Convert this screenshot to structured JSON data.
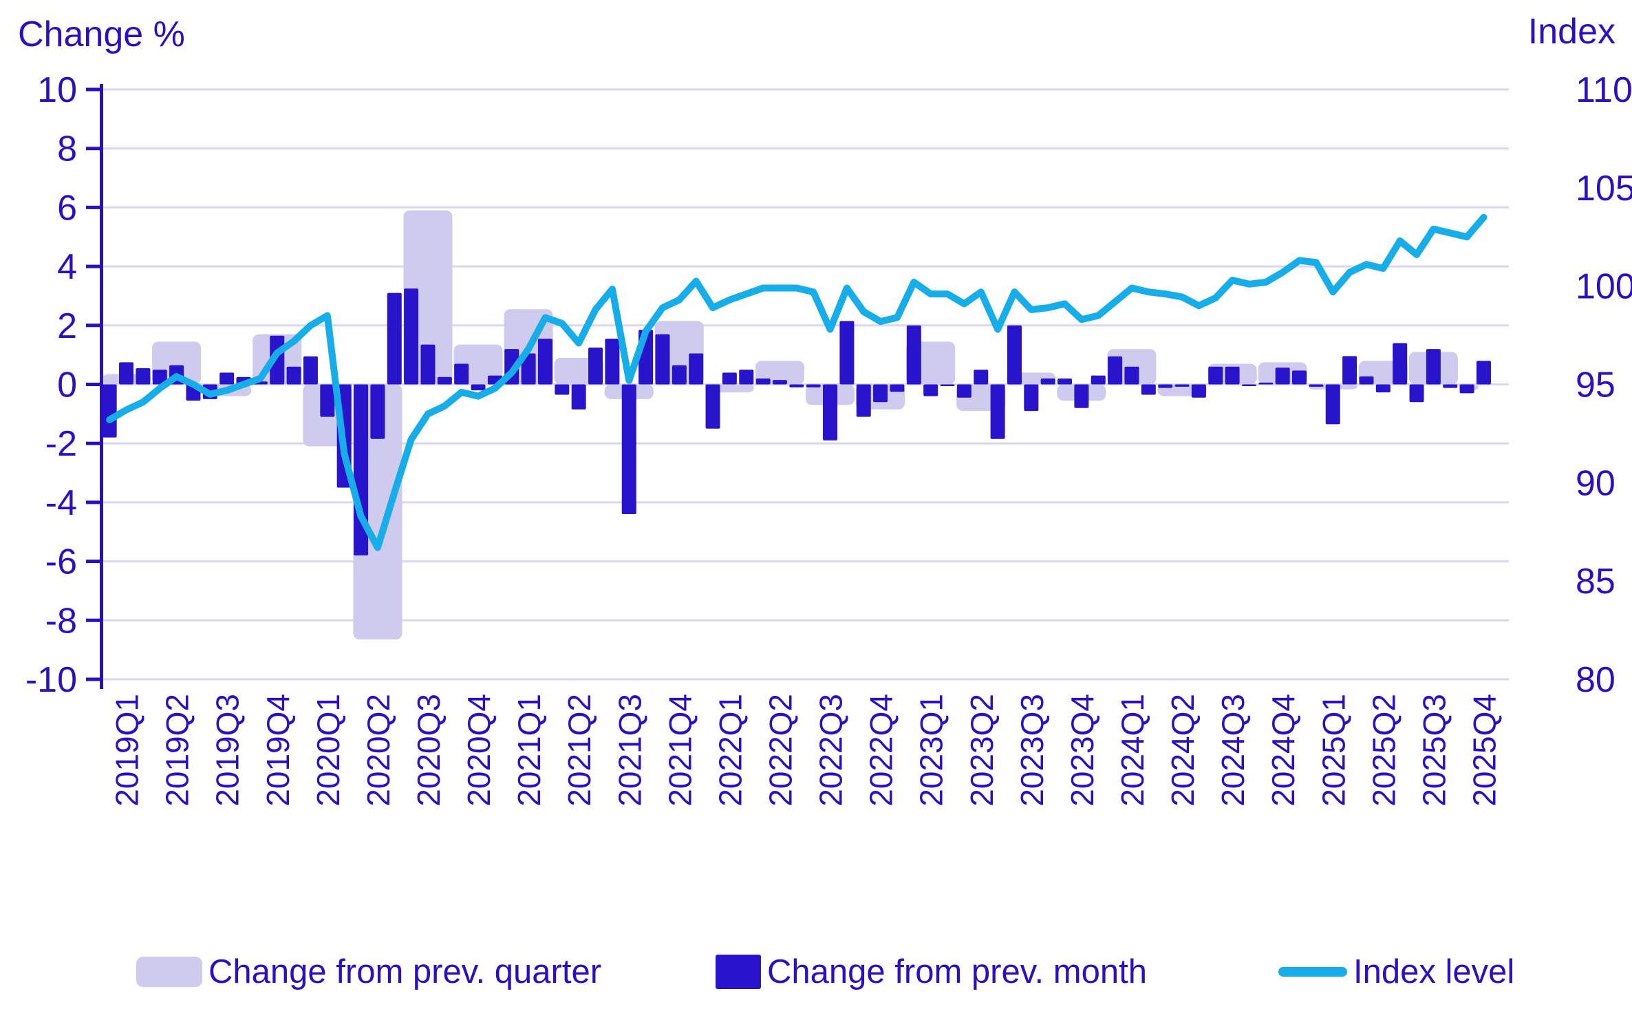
{
  "chart": {
    "left_axis": {
      "title": "Change %",
      "ticks": [
        10,
        8,
        6,
        4,
        2,
        0,
        -2,
        -4,
        -6,
        -8,
        -10
      ],
      "range": [
        -10,
        10
      ]
    },
    "right_axis": {
      "title": "Index",
      "ticks": [
        110,
        105,
        100,
        95,
        90,
        85,
        80
      ],
      "range": [
        80,
        110
      ]
    },
    "grid": "horizontal-on"
  },
  "legend": {
    "items": [
      {
        "label": "Change from prev. quarter",
        "swatch": "quarter-bar"
      },
      {
        "label": "Change from prev. month",
        "swatch": "month-bar"
      },
      {
        "label": "Index level",
        "swatch": "line"
      }
    ]
  },
  "colors": {
    "text": "#2a10c2",
    "axis": "#2a10c2",
    "gridline": "#d9d7f1",
    "bar_month": "#2714cb",
    "bar_quarter": "#cfcbee",
    "line_index": "#17ade9",
    "background": "#ffffff"
  },
  "chart_data": {
    "type": "combo",
    "title": "",
    "xlabel": "",
    "x_tick_labels": [
      "2019Q1",
      "2019Q2",
      "2019Q3",
      "2019Q4",
      "2020Q1",
      "2020Q2",
      "2020Q3",
      "2020Q4",
      "2021Q1",
      "2021Q2",
      "2021Q3",
      "2021Q4",
      "2022Q1",
      "2022Q2",
      "2022Q3",
      "2022Q4",
      "2023Q1",
      "2023Q2",
      "2023Q3",
      "2023Q4",
      "2024Q1",
      "2024Q2",
      "2024Q3",
      "2024Q4",
      "2025Q1",
      "2025Q2",
      "2025Q3",
      "2025Q4"
    ],
    "left_ylim": [
      -10,
      10
    ],
    "right_ylim": [
      80,
      110
    ],
    "series": [
      {
        "name": "Change from prev. quarter",
        "type": "bar",
        "axis": "left",
        "categories": [
          "2019Q1",
          "2019Q2",
          "2019Q3",
          "2019Q4",
          "2020Q1",
          "2020Q2",
          "2020Q3",
          "2020Q4",
          "2021Q1",
          "2021Q2",
          "2021Q3",
          "2021Q4",
          "2022Q1",
          "2022Q2",
          "2022Q3",
          "2022Q4",
          "2023Q1",
          "2023Q2",
          "2023Q3",
          "2023Q4",
          "2024Q1",
          "2024Q2",
          "2024Q3",
          "2024Q4",
          "2025Q1",
          "2025Q2",
          "2025Q3",
          "2025Q4"
        ],
        "values": [
          0.35,
          1.45,
          -0.4,
          1.7,
          -2.1,
          -8.65,
          5.9,
          1.35,
          2.55,
          0.9,
          -0.5,
          2.15,
          -0.27,
          0.8,
          -0.7,
          -0.85,
          1.45,
          -0.9,
          0.4,
          -0.55,
          1.2,
          -0.4,
          0.7,
          0.75,
          -0.17,
          0.8,
          1.1,
          -0.2
        ]
      },
      {
        "name": "Change from prev. month",
        "type": "bar",
        "axis": "left",
        "categories": [
          "2019-01",
          "2019-02",
          "2019-03",
          "2019-04",
          "2019-05",
          "2019-06",
          "2019-07",
          "2019-08",
          "2019-09",
          "2019-10",
          "2019-11",
          "2019-12",
          "2020-01",
          "2020-02",
          "2020-03",
          "2020-04",
          "2020-05",
          "2020-06",
          "2020-07",
          "2020-08",
          "2020-09",
          "2020-10",
          "2020-11",
          "2020-12",
          "2021-01",
          "2021-02",
          "2021-03",
          "2021-04",
          "2021-05",
          "2021-06",
          "2021-07",
          "2021-08",
          "2021-09",
          "2021-10",
          "2021-11",
          "2021-12",
          "2022-01",
          "2022-02",
          "2022-03",
          "2022-04",
          "2022-05",
          "2022-06",
          "2022-07",
          "2022-08",
          "2022-09",
          "2022-10",
          "2022-11",
          "2022-12",
          "2023-01",
          "2023-02",
          "2023-03",
          "2023-04",
          "2023-05",
          "2023-06",
          "2023-07",
          "2023-08",
          "2023-09",
          "2023-10",
          "2023-11",
          "2023-12",
          "2024-01",
          "2024-02",
          "2024-03",
          "2024-04",
          "2024-05",
          "2024-06",
          "2024-07",
          "2024-08",
          "2024-09",
          "2024-10",
          "2024-11",
          "2024-12",
          "2025-01",
          "2025-02",
          "2025-03",
          "2025-04",
          "2025-05",
          "2025-06",
          "2025-07",
          "2025-08",
          "2025-09",
          "2025-10",
          "2025-11"
        ],
        "values": [
          -1.8,
          0.75,
          0.55,
          0.5,
          0.65,
          -0.55,
          -0.5,
          0.4,
          0.25,
          0.1,
          1.65,
          0.6,
          0.95,
          -1.1,
          -3.5,
          -5.8,
          -1.85,
          3.1,
          3.25,
          1.35,
          0.25,
          0.7,
          -0.2,
          0.3,
          1.2,
          1.05,
          1.55,
          -0.35,
          -0.85,
          1.25,
          1.55,
          -4.4,
          1.85,
          1.7,
          0.65,
          1.05,
          -1.5,
          0.4,
          0.5,
          0.2,
          0.15,
          -0.1,
          -0.1,
          -1.9,
          2.15,
          -1.1,
          -0.6,
          -0.25,
          2.0,
          -0.4,
          -0.05,
          -0.45,
          0.5,
          -1.85,
          2.0,
          -0.9,
          0.2,
          0.2,
          -0.8,
          0.3,
          0.95,
          0.6,
          -0.35,
          -0.12,
          -0.08,
          -0.45,
          0.6,
          0.6,
          -0.05,
          0.06,
          0.57,
          0.47,
          -0.08,
          -1.35,
          0.96,
          0.27,
          -0.27,
          1.4,
          -0.6,
          1.2,
          -0.12,
          -0.3,
          0.8
        ]
      },
      {
        "name": "Index level",
        "type": "line",
        "axis": "right",
        "categories": [
          "2019-01",
          "2019-02",
          "2019-03",
          "2019-04",
          "2019-05",
          "2019-06",
          "2019-07",
          "2019-08",
          "2019-09",
          "2019-10",
          "2019-11",
          "2019-12",
          "2020-01",
          "2020-02",
          "2020-03",
          "2020-04",
          "2020-05",
          "2020-06",
          "2020-07",
          "2020-08",
          "2020-09",
          "2020-10",
          "2020-11",
          "2020-12",
          "2021-01",
          "2021-02",
          "2021-03",
          "2021-04",
          "2021-05",
          "2021-06",
          "2021-07",
          "2021-08",
          "2021-09",
          "2021-10",
          "2021-11",
          "2021-12",
          "2022-01",
          "2022-02",
          "2022-03",
          "2022-04",
          "2022-05",
          "2022-06",
          "2022-07",
          "2022-08",
          "2022-09",
          "2022-10",
          "2022-11",
          "2022-12",
          "2023-01",
          "2023-02",
          "2023-03",
          "2023-04",
          "2023-05",
          "2023-06",
          "2023-07",
          "2023-08",
          "2023-09",
          "2023-10",
          "2023-11",
          "2023-12",
          "2024-01",
          "2024-02",
          "2024-03",
          "2024-04",
          "2024-05",
          "2024-06",
          "2024-07",
          "2024-08",
          "2024-09",
          "2024-10",
          "2024-11",
          "2024-12",
          "2025-01",
          "2025-02",
          "2025-03",
          "2025-04",
          "2025-05",
          "2025-06",
          "2025-07",
          "2025-08",
          "2025-09",
          "2025-10",
          "2025-11"
        ],
        "values": [
          93.2,
          93.7,
          94.1,
          94.8,
          95.4,
          95.0,
          94.5,
          94.7,
          95.0,
          95.3,
          96.6,
          97.2,
          98.0,
          98.5,
          91.5,
          88.3,
          86.7,
          89.5,
          92.2,
          93.5,
          93.9,
          94.6,
          94.4,
          94.8,
          95.6,
          96.8,
          98.4,
          98.1,
          97.1,
          98.8,
          99.85,
          95.2,
          97.7,
          98.9,
          99.3,
          100.25,
          98.9,
          99.3,
          99.6,
          99.9,
          99.9,
          99.9,
          99.7,
          97.8,
          99.9,
          98.7,
          98.2,
          98.4,
          100.2,
          99.6,
          99.6,
          99.1,
          99.7,
          97.8,
          99.7,
          98.8,
          98.9,
          99.1,
          98.3,
          98.5,
          99.2,
          99.9,
          99.7,
          99.6,
          99.45,
          99.0,
          99.4,
          100.3,
          100.1,
          100.2,
          100.7,
          101.3,
          101.2,
          99.7,
          100.7,
          101.1,
          100.9,
          102.3,
          101.6,
          102.9,
          102.7,
          102.5,
          103.5
        ]
      }
    ],
    "legend_position": "bottom"
  }
}
